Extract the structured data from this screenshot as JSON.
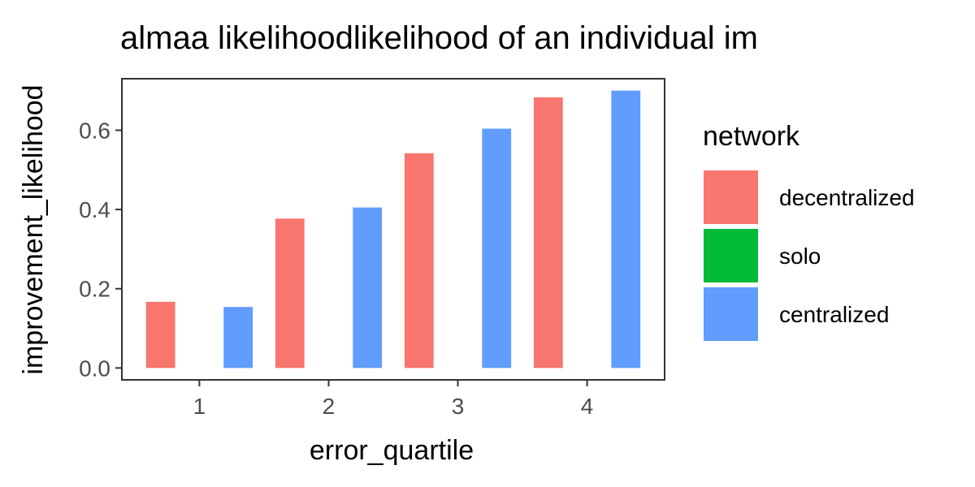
{
  "chart_data": {
    "type": "bar",
    "title": "almaa likelihoodlikelihood of an individual im",
    "xlabel": "error_quartile",
    "ylabel": "improvement_likelihood",
    "categories": [
      "1",
      "2",
      "3",
      "4"
    ],
    "ylim": [
      -0.03,
      0.73
    ],
    "yticks": [
      0.0,
      0.2,
      0.4,
      0.6
    ],
    "ytick_labels": [
      "0.0",
      "0.2",
      "0.4",
      "0.6"
    ],
    "grid": false,
    "legend": {
      "title": "network",
      "position": "right"
    },
    "series": [
      {
        "name": "decentralized",
        "color": "#F8766D",
        "values": [
          0.167,
          0.377,
          0.542,
          0.683
        ]
      },
      {
        "name": "solo",
        "color": "#00BA38",
        "values": [
          null,
          null,
          null,
          null
        ]
      },
      {
        "name": "centralized",
        "color": "#619CFF",
        "values": [
          0.154,
          0.405,
          0.604,
          0.7
        ]
      }
    ]
  }
}
